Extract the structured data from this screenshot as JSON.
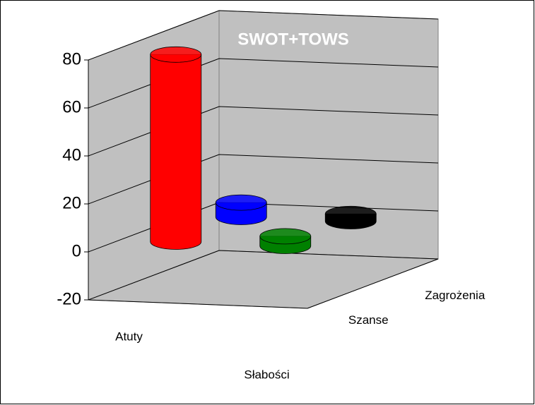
{
  "chart_data": {
    "type": "bar3d_cylinder",
    "title": "SWOT+TOWS",
    "categories": [
      "Atuty",
      "Słabości"
    ],
    "series": [
      {
        "name": "Szanse",
        "colors": [
          "#ff0000",
          "#008000"
        ],
        "values": [
          78,
          4
        ]
      },
      {
        "name": "Zagrożenia",
        "colors": [
          "#0000ff",
          "#000000"
        ],
        "values": [
          6,
          3
        ]
      }
    ],
    "ylim": [
      -20,
      80
    ],
    "yticks": [
      -20,
      0,
      20,
      40,
      60,
      80
    ],
    "grid": true
  }
}
